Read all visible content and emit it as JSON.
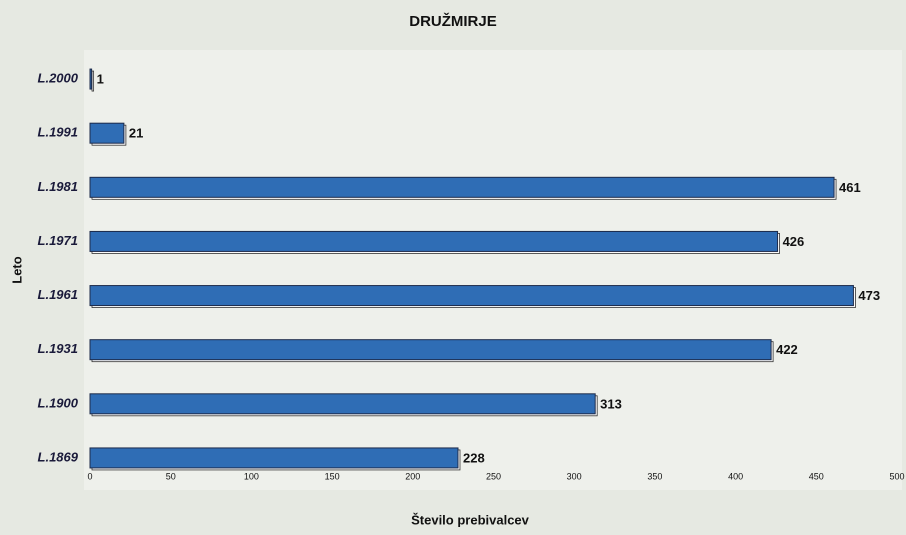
{
  "chart_data": {
    "type": "bar",
    "orientation": "horizontal",
    "title": "DRUŽMIRJE",
    "x_label": "Število prebivalcev",
    "y_label": "Leto",
    "categories": [
      "L.2000",
      "L.1991",
      "L.1981",
      "L.1971",
      "L.1961",
      "L.1931",
      "L.1900",
      "L.1869"
    ],
    "values": [
      1,
      21,
      461,
      426,
      473,
      422,
      313,
      228
    ],
    "color": "#2f6db5",
    "label_color": "#8a1c14",
    "xlim": [
      0,
      500
    ],
    "xticks": [
      0,
      50,
      100,
      150,
      200,
      250,
      300,
      350,
      400,
      450,
      500
    ],
    "grid": false
  }
}
